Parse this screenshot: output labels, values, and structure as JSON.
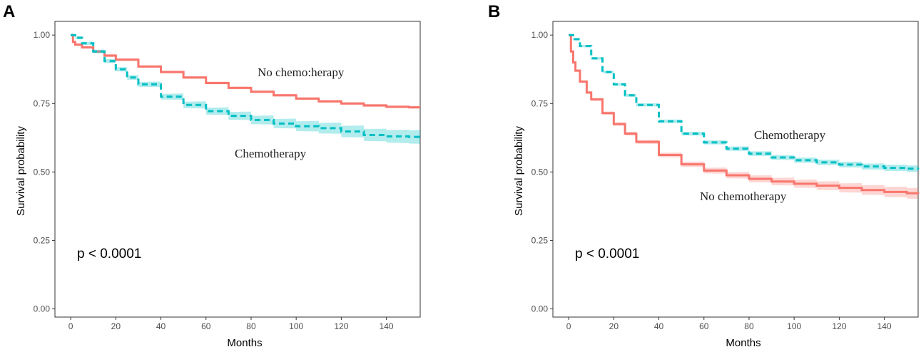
{
  "chart_data": [
    {
      "panel": "A",
      "type": "line",
      "xlabel": "Months",
      "ylabel": "Survival probability",
      "xlim": [
        -7,
        155
      ],
      "ylim": [
        -0.03,
        1.05
      ],
      "xticks": [
        0,
        20,
        40,
        60,
        80,
        100,
        120,
        140
      ],
      "yticks": [
        0.0,
        0.25,
        0.5,
        0.75,
        1.0
      ],
      "ytick_labels": [
        "0.00",
        "0.25",
        "0.50",
        "0.75",
        "1.00"
      ],
      "xtick_labels": [
        "0",
        "20",
        "40",
        "60",
        "80",
        "100",
        "120",
        "140"
      ],
      "pvalue": "p < 0.0001",
      "series": [
        {
          "name": "No chemotherapy",
          "label": "No chemo:herapy",
          "color": "#F8766D",
          "style": "solid",
          "x": [
            0,
            1,
            2,
            5,
            10,
            15,
            20,
            30,
            40,
            50,
            60,
            70,
            80,
            90,
            100,
            110,
            120,
            130,
            140,
            150,
            155
          ],
          "y": [
            1.0,
            0.975,
            0.965,
            0.955,
            0.94,
            0.925,
            0.91,
            0.885,
            0.865,
            0.845,
            0.825,
            0.807,
            0.793,
            0.78,
            0.768,
            0.758,
            0.75,
            0.743,
            0.738,
            0.736,
            0.736
          ],
          "ci_width": 0.005
        },
        {
          "name": "Chemotherapy",
          "label": "Chemotherapy",
          "color": "#00BFC4",
          "style": "dashed",
          "x": [
            0,
            2,
            5,
            10,
            15,
            20,
            25,
            30,
            40,
            50,
            60,
            70,
            80,
            90,
            100,
            110,
            120,
            130,
            140,
            150,
            155
          ],
          "y": [
            1.0,
            0.99,
            0.97,
            0.94,
            0.905,
            0.875,
            0.845,
            0.82,
            0.775,
            0.745,
            0.722,
            0.705,
            0.69,
            0.677,
            0.667,
            0.66,
            0.648,
            0.635,
            0.63,
            0.628,
            0.628
          ],
          "ci_width_start": 0.005,
          "ci_width_end": 0.025
        }
      ]
    },
    {
      "panel": "B",
      "type": "line",
      "xlabel": "Months",
      "ylabel": "Survival probability",
      "xlim": [
        -7,
        155
      ],
      "ylim": [
        -0.03,
        1.05
      ],
      "xticks": [
        0,
        20,
        40,
        60,
        80,
        100,
        120,
        140
      ],
      "yticks": [
        0.0,
        0.25,
        0.5,
        0.75,
        1.0
      ],
      "ytick_labels": [
        "0.00",
        "0.25",
        "0.50",
        "0.75",
        "1.00"
      ],
      "xtick_labels": [
        "0",
        "20",
        "40",
        "60",
        "80",
        "100",
        "120",
        "140"
      ],
      "pvalue": "p < 0.0001",
      "series": [
        {
          "name": "No chemotherapy",
          "label": "No chemotherapy",
          "color": "#F8766D",
          "style": "solid",
          "x": [
            0,
            1,
            2,
            3,
            5,
            8,
            10,
            15,
            20,
            25,
            30,
            40,
            50,
            60,
            70,
            80,
            90,
            100,
            110,
            120,
            130,
            140,
            150,
            155
          ],
          "y": [
            1.0,
            0.94,
            0.9,
            0.87,
            0.83,
            0.79,
            0.765,
            0.715,
            0.675,
            0.64,
            0.61,
            0.562,
            0.528,
            0.505,
            0.488,
            0.475,
            0.465,
            0.457,
            0.45,
            0.442,
            0.434,
            0.427,
            0.422,
            0.42
          ],
          "ci_width_start": 0.004,
          "ci_width_end": 0.02
        },
        {
          "name": "Chemotherapy",
          "label": "Chemotherapy",
          "color": "#00BFC4",
          "style": "dashed",
          "x": [
            0,
            2,
            5,
            10,
            15,
            20,
            25,
            30,
            40,
            50,
            60,
            70,
            80,
            90,
            100,
            110,
            120,
            130,
            140,
            150,
            155
          ],
          "y": [
            1.0,
            0.985,
            0.96,
            0.915,
            0.865,
            0.82,
            0.78,
            0.745,
            0.685,
            0.64,
            0.608,
            0.585,
            0.567,
            0.553,
            0.543,
            0.535,
            0.527,
            0.52,
            0.515,
            0.512,
            0.51
          ],
          "ci_width_start": 0.004,
          "ci_width_end": 0.012
        }
      ]
    }
  ]
}
